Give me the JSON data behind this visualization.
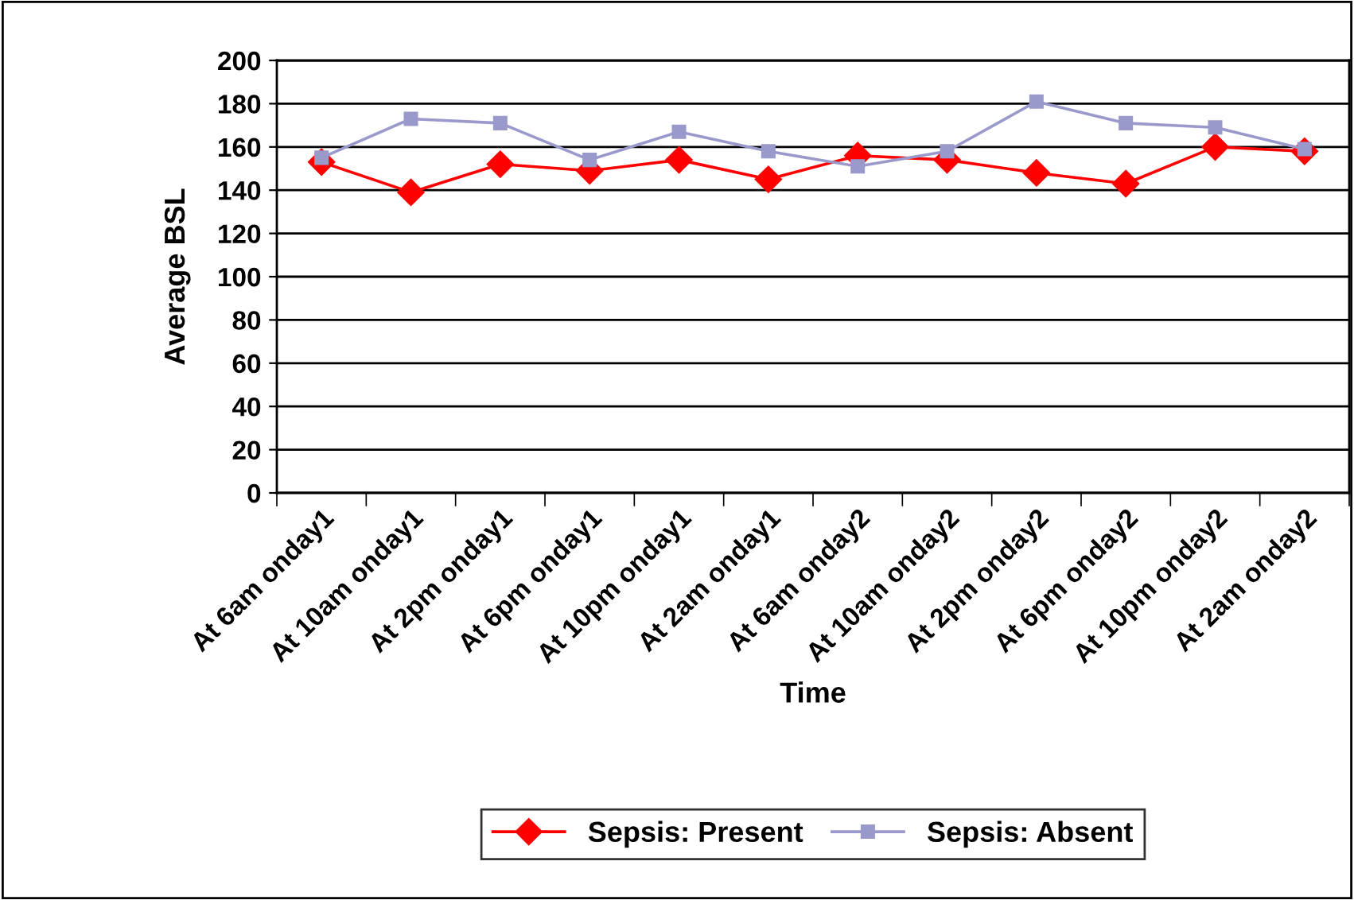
{
  "chart_data": {
    "type": "line",
    "xlabel": "Time",
    "ylabel": "Average BSL",
    "categories": [
      "At 6am onday1",
      "At 10am onday1",
      "At 2pm onday1",
      "At 6pm onday1",
      "At 10pm onday1",
      "At 2am onday1",
      "At 6am onday2",
      "At 10am onday2",
      "At 2pm onday2",
      "At 6pm onday2",
      "At 10pm onday2",
      "At 2am onday2"
    ],
    "series": [
      {
        "name": "Sepsis: Present",
        "color": "#ff0000",
        "marker": "diamond",
        "values": [
          153,
          139,
          152,
          149,
          154,
          145,
          156,
          154,
          148,
          143,
          160,
          158
        ]
      },
      {
        "name": "Sepsis: Absent",
        "color": "#9999cc",
        "marker": "square",
        "values": [
          155,
          173,
          171,
          154,
          167,
          158,
          151,
          158,
          181,
          171,
          169,
          159
        ]
      }
    ],
    "ylim": [
      0,
      200
    ],
    "yticks": [
      0,
      20,
      40,
      60,
      80,
      100,
      120,
      140,
      160,
      180,
      200
    ],
    "grid": "y",
    "legend": "bottom"
  }
}
